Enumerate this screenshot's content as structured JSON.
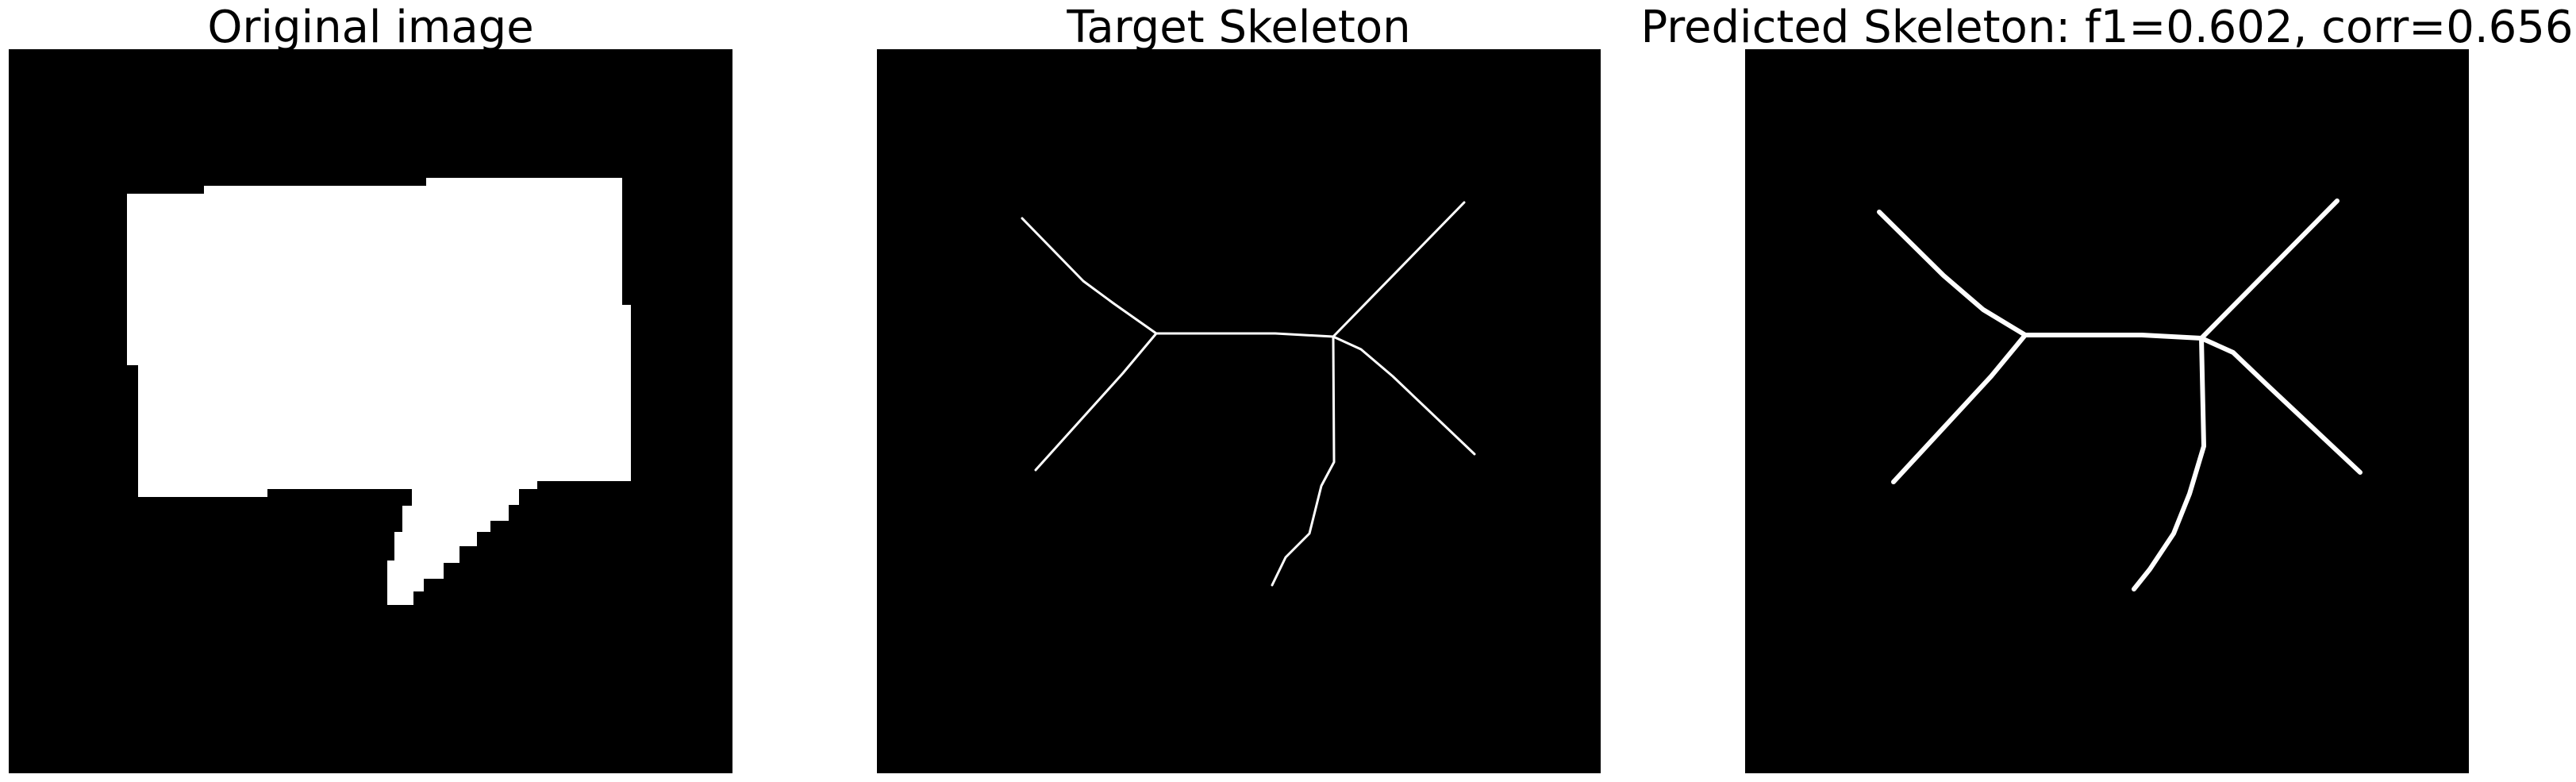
{
  "panels": [
    {
      "title": "Original image",
      "content": "binary-mask-speech-bubble"
    },
    {
      "title": "Target Skeleton",
      "content": "skeleton-lines"
    },
    {
      "title": "Predicted Skeleton: f1=0.602, corr=0.656",
      "content": "skeleton-lines"
    }
  ],
  "colors": {
    "background": "#000000",
    "foreground": "#ffffff",
    "page": "#ffffff"
  }
}
